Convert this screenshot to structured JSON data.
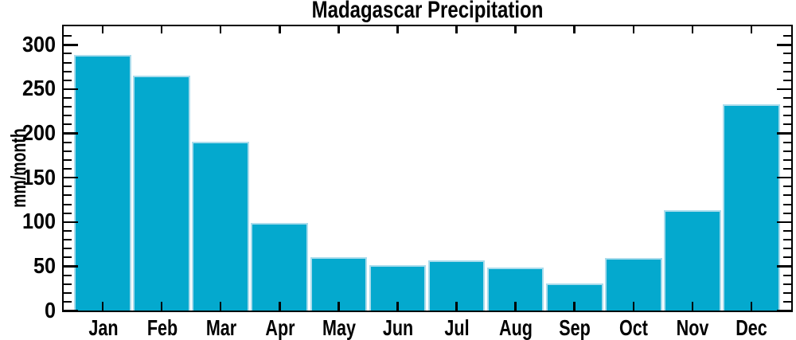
{
  "title": "Madagascar Precipitation",
  "chart_data": {
    "type": "bar",
    "title": "Madagascar Precipitation",
    "xlabel": "",
    "ylabel": "mm/month",
    "categories": [
      "Jan",
      "Feb",
      "Mar",
      "Apr",
      "May",
      "Jun",
      "Jul",
      "Aug",
      "Sep",
      "Oct",
      "Nov",
      "Dec"
    ],
    "values": [
      289,
      265,
      191,
      99,
      60,
      51,
      57,
      49,
      31,
      59,
      113,
      233
    ],
    "ylim": [
      0,
      320
    ],
    "ytick_major": 50,
    "ytick_minor": 10,
    "ytick_labels": [
      "0",
      "50",
      "100",
      "150",
      "200",
      "250",
      "300"
    ],
    "grid": false,
    "legend": "none",
    "tick_style": "inward, mirrored on top and right axes",
    "bar_color": "#04a9ce",
    "bar_edge_color": "#aadcec",
    "axis_color": "#000000",
    "text_color": "#000000",
    "background_color": "#ffffff"
  }
}
